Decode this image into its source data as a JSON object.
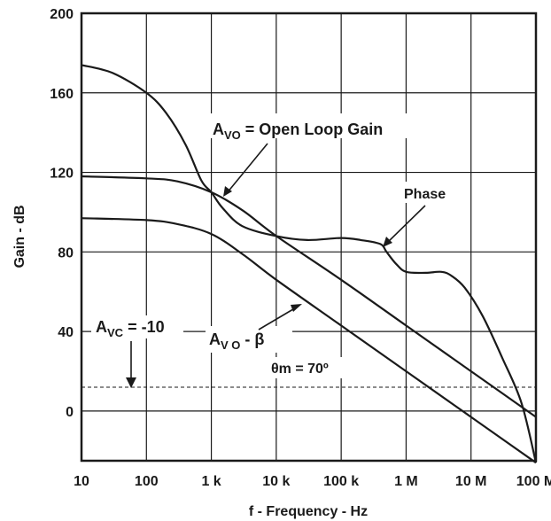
{
  "chart_data": {
    "type": "line",
    "xlabel": "f - Frequency - Hz",
    "ylabel": "Gain - dB",
    "xscale": "log",
    "xlim": [
      10,
      100000000
    ],
    "ylim": [
      -25,
      200
    ],
    "grid": true,
    "xticks": [
      {
        "value": 10,
        "label": "10"
      },
      {
        "value": 100,
        "label": "100"
      },
      {
        "value": 1000,
        "label": "1 k"
      },
      {
        "value": 10000,
        "label": "10 k"
      },
      {
        "value": 100000,
        "label": "100 k"
      },
      {
        "value": 1000000,
        "label": "1 M"
      },
      {
        "value": 10000000,
        "label": "10 M"
      },
      {
        "value": 100000000,
        "label": "100 M"
      }
    ],
    "yticks": [
      {
        "value": 0,
        "label": "0"
      },
      {
        "value": 40,
        "label": "40"
      },
      {
        "value": 80,
        "label": "80"
      },
      {
        "value": 120,
        "label": "120"
      },
      {
        "value": 160,
        "label": "160"
      },
      {
        "value": 200,
        "label": "200"
      }
    ],
    "series": [
      {
        "id": "avo",
        "x": [
          10,
          100,
          300,
          1000,
          3000,
          10000,
          100000,
          1000000,
          10000000,
          100000000
        ],
        "y": [
          118,
          117,
          115.5,
          110,
          101,
          88,
          66,
          43,
          20,
          -3
        ]
      },
      {
        "id": "avo-beta",
        "x": [
          10,
          100,
          300,
          1000,
          3000,
          10000,
          100000,
          1000000,
          10000000,
          100000000
        ],
        "y": [
          97,
          96,
          94,
          89,
          79,
          66,
          43,
          20,
          -3,
          -26
        ]
      },
      {
        "id": "phase",
        "x": [
          10,
          30,
          100,
          200,
          400,
          700,
          1000,
          1500,
          3000,
          10000,
          30000,
          100000,
          200000,
          400000,
          500000,
          700000,
          1000000,
          2000000,
          3500000,
          5000000,
          8000000,
          15000000,
          30000000,
          60000000,
          100000000
        ],
        "y": [
          174,
          170,
          160,
          150,
          134,
          116,
          110,
          102,
          93,
          88,
          86,
          87,
          86,
          84,
          80,
          74,
          70,
          69.5,
          70,
          68,
          62,
          48,
          27,
          4,
          -26
        ]
      }
    ],
    "reference_line": {
      "y": 12,
      "x_from": 10,
      "x_to": 100000000,
      "style": "dashed"
    },
    "annotations": {
      "open_loop": {
        "main": "A",
        "sub": "VO",
        "rest": " = Open Loop Gain"
      },
      "phase": "Phase",
      "avc": {
        "main": "A",
        "sub": "VC",
        "rest": " = -10"
      },
      "avo_beta": {
        "main": "A",
        "sub": "V O",
        "rest": " - β"
      },
      "theta": "θm = 70º"
    }
  }
}
